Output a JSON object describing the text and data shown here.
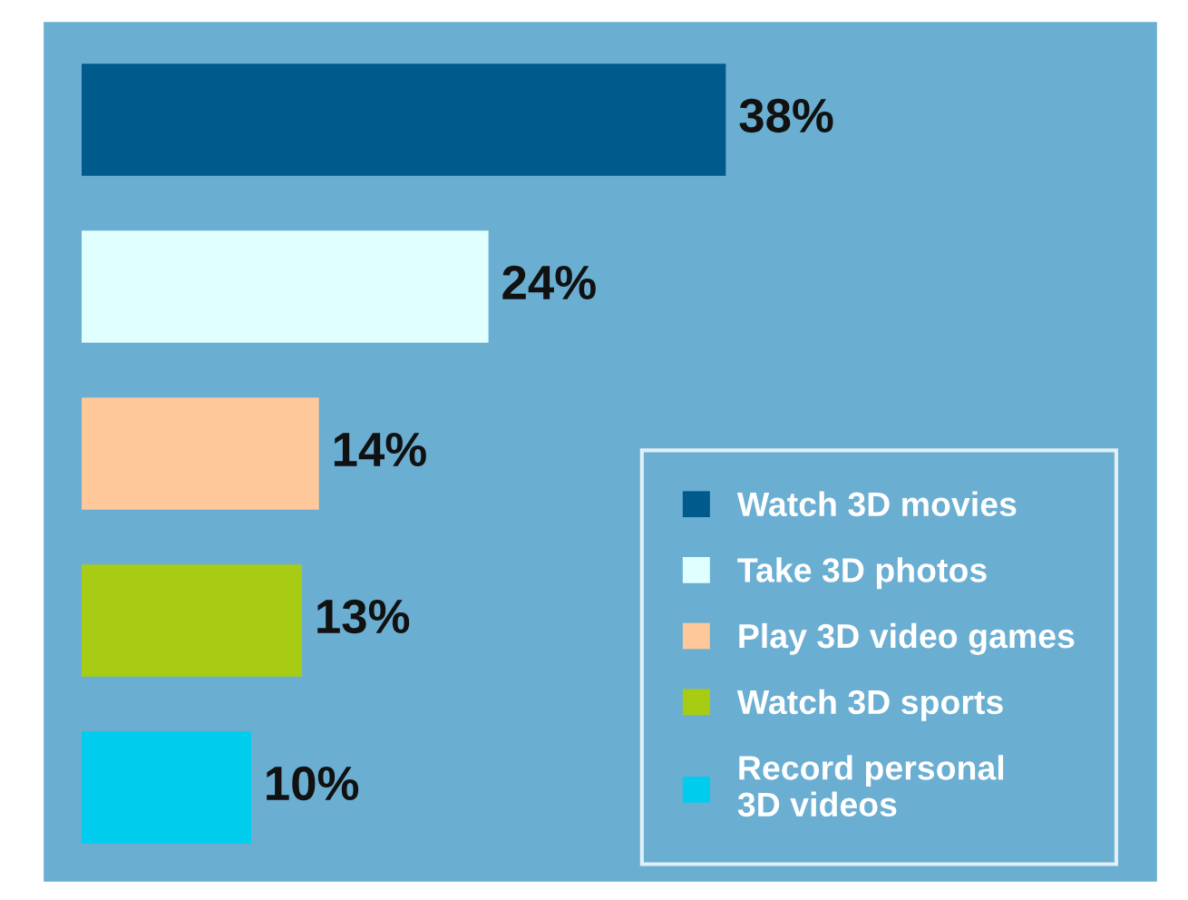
{
  "chart_data": {
    "type": "bar",
    "orientation": "horizontal",
    "stacked": true,
    "categories": [
      null,
      null,
      null,
      null,
      null
    ],
    "series": [
      {
        "name": "Watch 3D movies",
        "color": "#005a8c",
        "values": [
          38,
          null,
          null,
          null,
          null
        ],
        "value_labels": [
          "38%",
          null,
          null,
          null,
          null
        ]
      },
      {
        "name": "Take 3D photos",
        "color": "#e0ffff",
        "values": [
          null,
          24,
          null,
          null,
          null
        ],
        "value_labels": [
          null,
          "24%",
          null,
          null,
          null
        ]
      },
      {
        "name": "Play 3D video games",
        "color": "#ffc89a",
        "values": [
          null,
          null,
          14,
          null,
          null
        ],
        "value_labels": [
          null,
          null,
          "14%",
          null,
          null
        ]
      },
      {
        "name": "Watch 3D sports",
        "color": "#a8cc14",
        "values": [
          null,
          null,
          null,
          13,
          null
        ],
        "value_labels": [
          null,
          null,
          null,
          "13%",
          null
        ]
      },
      {
        "name": "Record personal\n3D videos",
        "color": "#00ccee",
        "values": [
          null,
          null,
          null,
          null,
          10
        ],
        "value_labels": [
          null,
          null,
          null,
          null,
          "10%"
        ]
      }
    ],
    "tick_labels": false,
    "legend": "bottom right"
  }
}
